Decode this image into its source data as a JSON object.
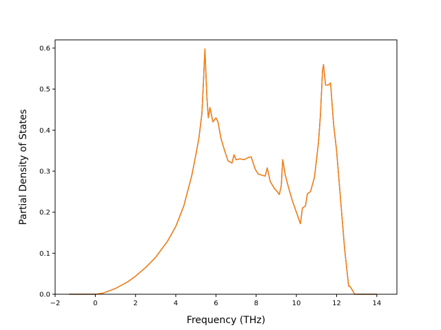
{
  "chart_data": {
    "type": "line",
    "title": "",
    "xlabel": "Frequency (THz)",
    "ylabel": "Partial Density of States",
    "xlim": [
      -2.0,
      15.0
    ],
    "ylim": [
      0.0,
      0.62
    ],
    "xticks": [
      -2,
      0,
      2,
      4,
      6,
      8,
      10,
      12,
      14
    ],
    "xtick_labels": [
      "−2",
      "0",
      "2",
      "4",
      "6",
      "8",
      "10",
      "12",
      "14"
    ],
    "yticks": [
      0.0,
      0.1,
      0.2,
      0.3,
      0.4,
      0.5,
      0.6
    ],
    "ytick_labels": [
      "0.0",
      "0.1",
      "0.2",
      "0.3",
      "0.4",
      "0.5",
      "0.6"
    ],
    "grid": false,
    "legend": "none",
    "series": [
      {
        "color": "#1f77b4",
        "x": [
          -1.3,
          0.0,
          0.4,
          1.0,
          1.6,
          2.0,
          2.5,
          3.0,
          3.3,
          3.6,
          4.0,
          4.4,
          4.8,
          5.0,
          5.15,
          5.3,
          5.38,
          5.45,
          5.55,
          5.62,
          5.7,
          5.85,
          6.0,
          6.1,
          6.25,
          6.4,
          6.6,
          6.8,
          6.9,
          7.0,
          7.2,
          7.4,
          7.6,
          7.75,
          7.85,
          7.95,
          8.1,
          8.3,
          8.45,
          8.55,
          8.7,
          8.9,
          9.05,
          9.15,
          9.25,
          9.32,
          9.45,
          9.6,
          9.8,
          10.0,
          10.2,
          10.3,
          10.45,
          10.55,
          10.7,
          10.9,
          11.1,
          11.2,
          11.3,
          11.35,
          11.45,
          11.6,
          11.7,
          11.85,
          12.0,
          12.2,
          12.4,
          12.6,
          12.65,
          12.75,
          12.9,
          13.2,
          14.0
        ],
        "y": [
          0.0,
          0.0,
          0.003,
          0.014,
          0.03,
          0.044,
          0.065,
          0.09,
          0.11,
          0.13,
          0.165,
          0.215,
          0.29,
          0.34,
          0.38,
          0.44,
          0.52,
          0.598,
          0.48,
          0.43,
          0.455,
          0.42,
          0.43,
          0.42,
          0.38,
          0.355,
          0.325,
          0.32,
          0.34,
          0.328,
          0.33,
          0.328,
          0.333,
          0.335,
          0.32,
          0.305,
          0.293,
          0.29,
          0.288,
          0.308,
          0.275,
          0.258,
          0.25,
          0.243,
          0.265,
          0.328,
          0.29,
          0.262,
          0.228,
          0.2,
          0.172,
          0.21,
          0.215,
          0.245,
          0.25,
          0.285,
          0.37,
          0.44,
          0.545,
          0.56,
          0.51,
          0.51,
          0.515,
          0.415,
          0.35,
          0.23,
          0.11,
          0.02,
          0.02,
          0.013,
          0.0,
          0.0,
          0.0
        ]
      },
      {
        "color": "#ff7f0e",
        "x": [
          -1.3,
          0.0,
          0.4,
          1.0,
          1.6,
          2.0,
          2.5,
          3.0,
          3.3,
          3.6,
          4.0,
          4.4,
          4.8,
          5.0,
          5.15,
          5.3,
          5.38,
          5.45,
          5.55,
          5.62,
          5.7,
          5.85,
          6.0,
          6.1,
          6.25,
          6.4,
          6.6,
          6.8,
          6.9,
          7.0,
          7.2,
          7.4,
          7.6,
          7.75,
          7.85,
          7.95,
          8.1,
          8.3,
          8.45,
          8.55,
          8.7,
          8.9,
          9.05,
          9.15,
          9.25,
          9.32,
          9.45,
          9.6,
          9.8,
          10.0,
          10.2,
          10.3,
          10.45,
          10.55,
          10.7,
          10.9,
          11.1,
          11.2,
          11.3,
          11.35,
          11.45,
          11.6,
          11.7,
          11.85,
          12.0,
          12.2,
          12.4,
          12.6,
          12.65,
          12.75,
          12.9,
          13.2,
          14.0
        ],
        "y": [
          0.0,
          0.0,
          0.003,
          0.014,
          0.03,
          0.044,
          0.065,
          0.09,
          0.11,
          0.13,
          0.165,
          0.215,
          0.29,
          0.34,
          0.38,
          0.44,
          0.52,
          0.598,
          0.48,
          0.43,
          0.455,
          0.42,
          0.43,
          0.42,
          0.38,
          0.355,
          0.325,
          0.32,
          0.34,
          0.328,
          0.33,
          0.328,
          0.333,
          0.335,
          0.32,
          0.305,
          0.293,
          0.29,
          0.288,
          0.308,
          0.275,
          0.258,
          0.25,
          0.243,
          0.265,
          0.328,
          0.29,
          0.262,
          0.228,
          0.2,
          0.172,
          0.21,
          0.215,
          0.245,
          0.25,
          0.285,
          0.37,
          0.44,
          0.545,
          0.56,
          0.51,
          0.51,
          0.515,
          0.415,
          0.35,
          0.23,
          0.11,
          0.02,
          0.02,
          0.013,
          0.0,
          0.0,
          0.0
        ]
      }
    ]
  }
}
